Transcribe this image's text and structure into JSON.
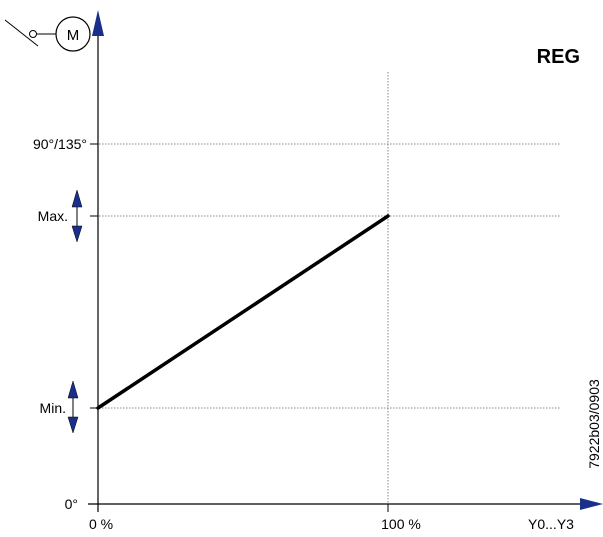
{
  "title": "REG",
  "motor_symbol_label": "M",
  "y_ticks": {
    "full": "90°/135°",
    "max": "Max.",
    "min": "Min.",
    "zero": "0°"
  },
  "x_ticks": {
    "zero": "0 %",
    "full": "100 %"
  },
  "x_axis_label": "Y0...Y3",
  "document_code": "7922b03/0903",
  "colors": {
    "arrow_fill": "#1a2f8a",
    "line": "#000000",
    "grid": "#666666"
  },
  "chart_data": {
    "type": "line",
    "x": [
      "0 %",
      "100 %"
    ],
    "series": [
      {
        "values_from": "Min.",
        "values_to": "Max."
      }
    ],
    "adjustable_levels": [
      "Min.",
      "Max."
    ]
  }
}
